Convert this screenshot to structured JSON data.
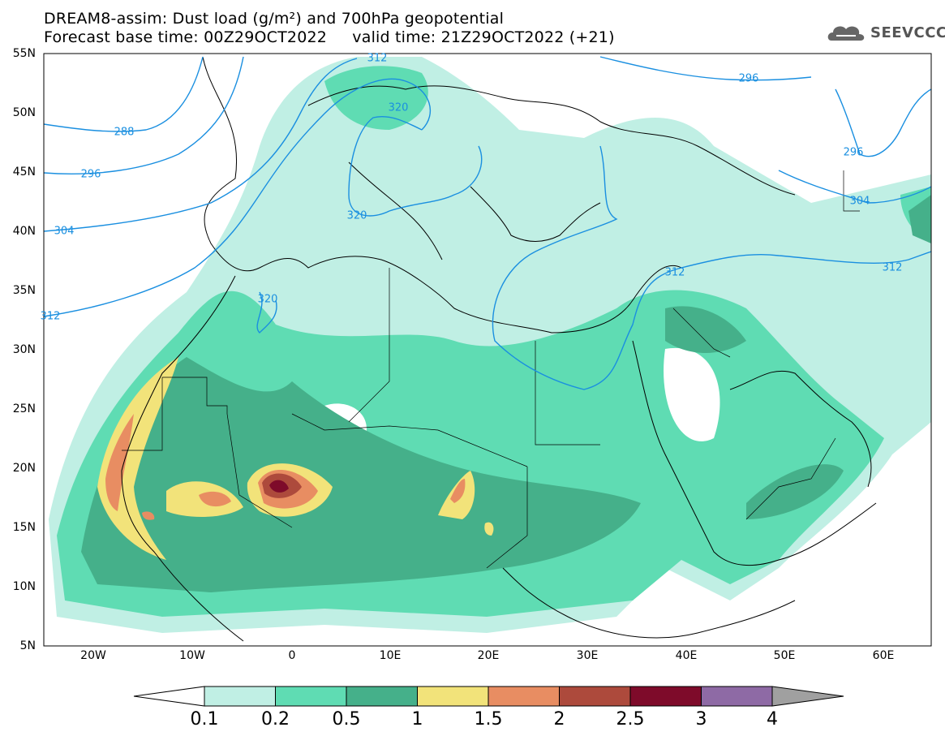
{
  "header": {
    "title_line1": "DREAM8-assim: Dust load (g/m²) and 700hPa geopotential",
    "title_line2": "Forecast base time: 00Z29OCT2022     valid time: 21Z29OCT2022 (+21)",
    "logo_text": "SEEVCCC"
  },
  "map": {
    "lat_labels": [
      "55N",
      "50N",
      "45N",
      "40N",
      "35N",
      "30N",
      "25N",
      "20N",
      "15N",
      "10N",
      "5N"
    ],
    "lon_labels": [
      "20W",
      "10W",
      "0",
      "10E",
      "20E",
      "30E",
      "40E",
      "50E",
      "60E"
    ],
    "contour_labels": [
      "288",
      "296",
      "296",
      "296",
      "304",
      "304",
      "312",
      "312",
      "312",
      "320",
      "320",
      "320",
      "312"
    ],
    "colors": {
      "level_0_1": "#c0efe4",
      "level_0_2": "#5fdcb3",
      "level_0_5": "#45b08a",
      "level_1": "#f2e37a",
      "level_1_5": "#e88d62",
      "level_2": "#ad4a3c",
      "level_2_5": "#7e0b2a",
      "level_3": "#8e6aa5",
      "contour": "#1a8fe0"
    }
  },
  "colorbar": {
    "labels": [
      "0.1",
      "0.2",
      "0.5",
      "1",
      "1.5",
      "2",
      "2.5",
      "3",
      "4"
    ],
    "colors": [
      "#c0efe4",
      "#5fdcb3",
      "#45b08a",
      "#f2e37a",
      "#e88d62",
      "#ad4a3c",
      "#7e0b2a",
      "#8e6aa5"
    ],
    "under_color": "#ffffff",
    "over_color": "#a0a0a0"
  }
}
